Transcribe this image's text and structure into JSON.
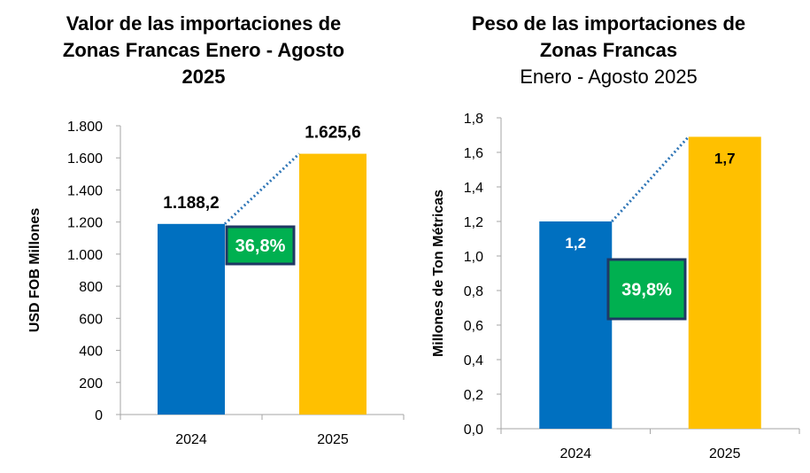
{
  "chart_data": [
    {
      "type": "bar",
      "title": "Valor de las importaciones de Zonas Francas Enero - Agosto 2025",
      "title_lines": [
        "Valor de las importaciones de",
        "Zonas Francas Enero - Agosto",
        "2025"
      ],
      "subtitle": "",
      "ylabel": "USD FOB Millones",
      "xlabel": "",
      "categories": [
        "2024",
        "2025"
      ],
      "values": [
        1188.2,
        1625.6
      ],
      "value_labels": [
        "1.188,2",
        "1.625,6"
      ],
      "bar_colors": [
        "#0070C0",
        "#FFC000"
      ],
      "ylim": [
        0,
        1800
      ],
      "yticks": [
        0,
        200,
        400,
        600,
        800,
        1000,
        1200,
        1400,
        1600,
        1800
      ],
      "ytick_labels": [
        "0",
        "200",
        "400",
        "600",
        "800",
        "1.000",
        "1.200",
        "1.400",
        "1.600",
        "1.800"
      ],
      "growth_label": "36,8%",
      "growth_color": "#00B050",
      "grid": false
    },
    {
      "type": "bar",
      "title": "Peso de las importaciones de Zonas Francas",
      "title_lines": [
        "Peso de las importaciones de",
        "Zonas Francas"
      ],
      "subtitle": "Enero - Agosto 2025",
      "ylabel": "Millones de Ton Métricas",
      "xlabel": "",
      "categories": [
        "2024",
        "2025"
      ],
      "values": [
        1.2,
        1.69
      ],
      "value_labels": [
        "1,2",
        "1,7"
      ],
      "bar_colors": [
        "#0070C0",
        "#FFC000"
      ],
      "ylim": [
        0,
        1.8
      ],
      "yticks": [
        0,
        0.2,
        0.4,
        0.6,
        0.8,
        1.0,
        1.2,
        1.4,
        1.6,
        1.8
      ],
      "ytick_labels": [
        "0,0",
        "0,2",
        "0,4",
        "0,6",
        "0,8",
        "1,0",
        "1,2",
        "1,4",
        "1,6",
        "1,8"
      ],
      "growth_label": "39,8%",
      "growth_color": "#00B050",
      "grid": false
    }
  ]
}
